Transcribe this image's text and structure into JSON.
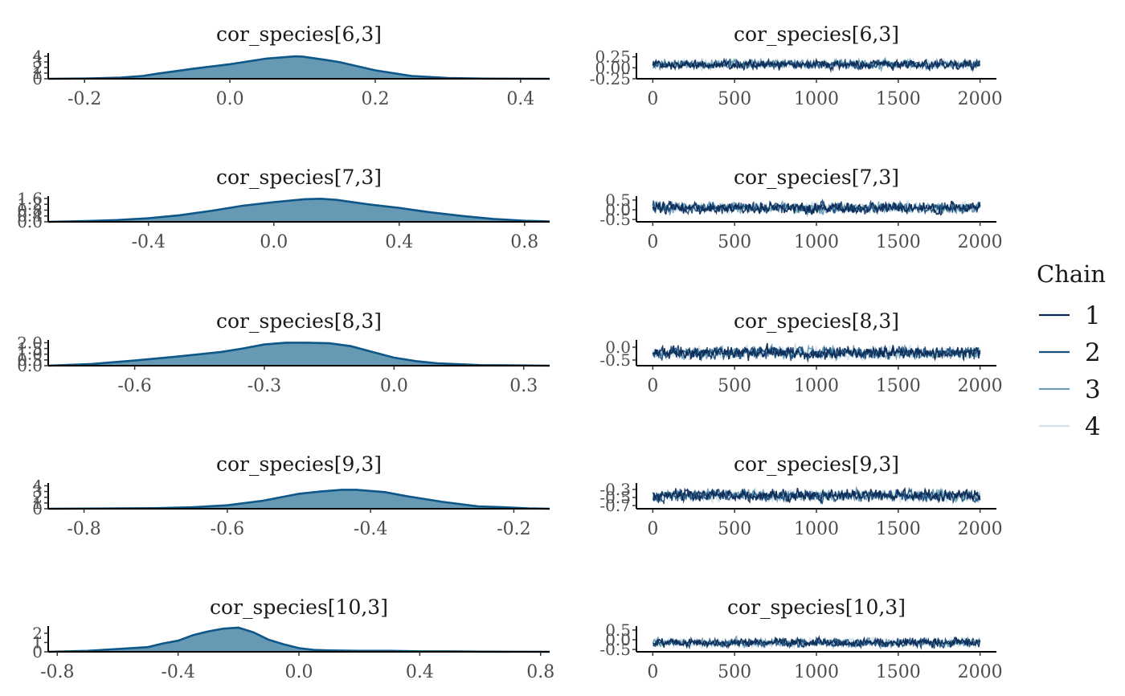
{
  "legend": {
    "title": "Chain",
    "position": "right",
    "items": [
      {
        "label": "1",
        "color": "#0b2a55"
      },
      {
        "label": "2",
        "color": "#1d4f7d"
      },
      {
        "label": "3",
        "color": "#6e9db5"
      },
      {
        "label": "4",
        "color": "#d0e0ea"
      }
    ]
  },
  "colors": {
    "density_fill": "#6699b3",
    "density_line": "#0e5789"
  },
  "chart_data": [
    {
      "type": "area",
      "title": "cor_species[6,3]",
      "xlim": [
        -0.25,
        0.44
      ],
      "xticks": [
        -0.2,
        0.0,
        0.2,
        0.4
      ],
      "xtick_labels": [
        "-0.2",
        "0.0",
        "0.2",
        "0.4"
      ],
      "ylim": [
        0,
        4.3
      ],
      "yticks": [
        0,
        1,
        2,
        3,
        4
      ],
      "ytick_labels": [
        "0",
        "1",
        "2",
        "3",
        "4"
      ],
      "x": [
        -0.25,
        -0.2,
        -0.15,
        -0.12,
        -0.1,
        -0.05,
        0.0,
        0.02,
        0.05,
        0.09,
        0.1,
        0.13,
        0.15,
        0.2,
        0.25,
        0.3,
        0.35,
        0.44
      ],
      "y": [
        0.0,
        0.05,
        0.2,
        0.5,
        0.9,
        1.8,
        2.6,
        3.0,
        3.6,
        4.0,
        3.95,
        3.4,
        3.0,
        1.5,
        0.5,
        0.15,
        0.03,
        0.0
      ]
    },
    {
      "type": "line",
      "title": "cor_species[6,3]",
      "xlim": [
        -100,
        2100
      ],
      "xticks": [
        0,
        500,
        1000,
        1500,
        2000
      ],
      "xtick_labels": [
        "0",
        "500",
        "1000",
        "1500",
        "2000"
      ],
      "ylim": [
        -0.25,
        0.3
      ],
      "yticks": [
        -0.25,
        0.0,
        0.25
      ],
      "ytick_labels": [
        "-0.25",
        "0.00",
        "0.25"
      ],
      "trace": {
        "iterations": 2000,
        "center": 0.08,
        "sd": 0.07,
        "clip": [
          -0.22,
          0.28
        ]
      },
      "series": [
        {
          "name": "1",
          "color": "#0b2a55"
        },
        {
          "name": "2",
          "color": "#1d4f7d"
        },
        {
          "name": "3",
          "color": "#6e9db5"
        },
        {
          "name": "4",
          "color": "#d0e0ea"
        }
      ]
    },
    {
      "type": "area",
      "title": "cor_species[7,3]",
      "xlim": [
        -0.72,
        0.88
      ],
      "xticks": [
        -0.4,
        0.0,
        0.4,
        0.8
      ],
      "xtick_labels": [
        "-0.4",
        "0.0",
        "0.4",
        "0.8"
      ],
      "ylim": [
        0,
        1.65
      ],
      "yticks": [
        0.0,
        0.4,
        0.8,
        1.2,
        1.6
      ],
      "ytick_labels": [
        "0.0",
        "0.4",
        "0.8",
        "1.2",
        "1.6"
      ],
      "x": [
        -0.72,
        -0.6,
        -0.5,
        -0.4,
        -0.3,
        -0.2,
        -0.1,
        0.0,
        0.1,
        0.15,
        0.2,
        0.3,
        0.4,
        0.5,
        0.6,
        0.7,
        0.8,
        0.88
      ],
      "y": [
        0.0,
        0.05,
        0.12,
        0.25,
        0.45,
        0.75,
        1.1,
        1.35,
        1.55,
        1.58,
        1.5,
        1.2,
        0.95,
        0.65,
        0.4,
        0.2,
        0.07,
        0.02
      ]
    },
    {
      "type": "line",
      "title": "cor_species[7,3]",
      "xlim": [
        -100,
        2100
      ],
      "xticks": [
        0,
        500,
        1000,
        1500,
        2000
      ],
      "xtick_labels": [
        "0",
        "500",
        "1000",
        "1500",
        "2000"
      ],
      "ylim": [
        -0.62,
        0.62
      ],
      "yticks": [
        -0.5,
        0.0,
        0.5
      ],
      "ytick_labels": [
        "-0.5",
        "0.0",
        "0.5"
      ],
      "trace": {
        "iterations": 2000,
        "center": 0.1,
        "sd": 0.2,
        "clip": [
          -0.5,
          0.55
        ]
      },
      "series": [
        {
          "name": "1",
          "color": "#0b2a55"
        },
        {
          "name": "2",
          "color": "#1d4f7d"
        },
        {
          "name": "3",
          "color": "#6e9db5"
        },
        {
          "name": "4",
          "color": "#d0e0ea"
        }
      ]
    },
    {
      "type": "area",
      "title": "cor_species[8,3]",
      "xlim": [
        -0.8,
        0.36
      ],
      "xticks": [
        -0.6,
        -0.3,
        0.0,
        0.3
      ],
      "xtick_labels": [
        "-0.6",
        "-0.3",
        "0.0",
        "0.3"
      ],
      "ylim": [
        0,
        2.1
      ],
      "yticks": [
        0.0,
        0.5,
        1.0,
        1.5,
        2.0
      ],
      "ytick_labels": [
        "0.0",
        "0.5",
        "1.0",
        "1.5",
        "2.0"
      ],
      "x": [
        -0.8,
        -0.7,
        -0.6,
        -0.5,
        -0.4,
        -0.35,
        -0.3,
        -0.25,
        -0.2,
        -0.15,
        -0.1,
        -0.05,
        0.0,
        0.05,
        0.1,
        0.2,
        0.36
      ],
      "y": [
        0.0,
        0.15,
        0.45,
        0.8,
        1.2,
        1.5,
        1.85,
        2.0,
        2.0,
        1.95,
        1.7,
        1.2,
        0.7,
        0.4,
        0.2,
        0.05,
        0.0
      ]
    },
    {
      "type": "line",
      "title": "cor_species[8,3]",
      "xlim": [
        -100,
        2100
      ],
      "xticks": [
        0,
        500,
        1000,
        1500,
        2000
      ],
      "xtick_labels": [
        "0",
        "500",
        "1000",
        "1500",
        "2000"
      ],
      "ylim": [
        -0.72,
        0.22
      ],
      "yticks": [
        -0.5,
        0.0
      ],
      "ytick_labels": [
        "-0.5",
        "0.0"
      ],
      "trace": {
        "iterations": 2000,
        "center": -0.22,
        "sd": 0.17,
        "clip": [
          -0.7,
          0.2
        ]
      },
      "series": [
        {
          "name": "1",
          "color": "#0b2a55"
        },
        {
          "name": "2",
          "color": "#1d4f7d"
        },
        {
          "name": "3",
          "color": "#6e9db5"
        },
        {
          "name": "4",
          "color": "#d0e0ea"
        }
      ]
    },
    {
      "type": "area",
      "title": "cor_species[9,3]",
      "xlim": [
        -0.85,
        -0.15
      ],
      "xticks": [
        -0.8,
        -0.6,
        -0.4,
        -0.2
      ],
      "xtick_labels": [
        "-0.8",
        "-0.6",
        "-0.4",
        "-0.2"
      ],
      "ylim": [
        0,
        4.2
      ],
      "yticks": [
        0,
        1,
        2,
        3,
        4
      ],
      "ytick_labels": [
        "0",
        "1",
        "2",
        "3",
        "4"
      ],
      "x": [
        -0.85,
        -0.75,
        -0.7,
        -0.65,
        -0.6,
        -0.55,
        -0.5,
        -0.47,
        -0.44,
        -0.42,
        -0.38,
        -0.35,
        -0.3,
        -0.25,
        -0.22,
        -0.18,
        -0.15
      ],
      "y": [
        0.0,
        0.05,
        0.1,
        0.25,
        0.6,
        1.4,
        2.6,
        3.0,
        3.3,
        3.3,
        2.9,
        2.2,
        1.2,
        0.4,
        0.3,
        0.05,
        0.0
      ]
    },
    {
      "type": "line",
      "title": "cor_species[9,3]",
      "xlim": [
        -100,
        2100
      ],
      "xticks": [
        0,
        500,
        1000,
        1500,
        2000
      ],
      "xtick_labels": [
        "0",
        "500",
        "1000",
        "1500",
        "2000"
      ],
      "ylim": [
        -0.78,
        -0.18
      ],
      "yticks": [
        -0.7,
        -0.5,
        -0.3
      ],
      "ytick_labels": [
        "-0.7",
        "-0.5",
        "-0.3"
      ],
      "trace": {
        "iterations": 2000,
        "center": -0.45,
        "sd": 0.1,
        "clip": [
          -0.75,
          -0.2
        ]
      },
      "series": [
        {
          "name": "1",
          "color": "#0b2a55"
        },
        {
          "name": "2",
          "color": "#1d4f7d"
        },
        {
          "name": "3",
          "color": "#6e9db5"
        },
        {
          "name": "4",
          "color": "#d0e0ea"
        }
      ]
    },
    {
      "type": "area",
      "title": "cor_species[10,3]",
      "xlim": [
        -0.83,
        0.83
      ],
      "xticks": [
        -0.8,
        -0.4,
        0.0,
        0.4,
        0.8
      ],
      "xtick_labels": [
        "-0.8",
        "-0.4",
        "0.0",
        "0.4",
        "0.8"
      ],
      "ylim": [
        0,
        2.6
      ],
      "yticks": [
        0,
        1,
        2
      ],
      "ytick_labels": [
        "0",
        "1",
        "2"
      ],
      "x": [
        -0.83,
        -0.7,
        -0.6,
        -0.5,
        -0.45,
        -0.4,
        -0.35,
        -0.3,
        -0.25,
        -0.2,
        -0.15,
        -0.1,
        -0.05,
        0.0,
        0.05,
        0.1,
        0.2,
        0.3,
        0.4,
        0.5,
        0.6,
        0.83
      ],
      "y": [
        0.0,
        0.1,
        0.3,
        0.5,
        0.9,
        1.2,
        1.8,
        2.2,
        2.5,
        2.6,
        2.1,
        1.3,
        0.8,
        0.4,
        0.2,
        0.15,
        0.1,
        0.1,
        0.05,
        0.05,
        0.02,
        0.0
      ]
    },
    {
      "type": "line",
      "title": "cor_species[10,3]",
      "xlim": [
        -100,
        2100
      ],
      "xticks": [
        0,
        500,
        1000,
        1500,
        2000
      ],
      "xtick_labels": [
        "0",
        "500",
        "1000",
        "1500",
        "2000"
      ],
      "ylim": [
        -0.62,
        0.62
      ],
      "yticks": [
        -0.5,
        0.0,
        0.5
      ],
      "ytick_labels": [
        "-0.5",
        "0.0",
        "0.5"
      ],
      "trace": {
        "iterations": 2000,
        "center": -0.15,
        "sd": 0.15,
        "clip": [
          -0.55,
          0.55
        ]
      },
      "series": [
        {
          "name": "1",
          "color": "#0b2a55"
        },
        {
          "name": "2",
          "color": "#1d4f7d"
        },
        {
          "name": "3",
          "color": "#6e9db5"
        },
        {
          "name": "4",
          "color": "#d0e0ea"
        }
      ]
    }
  ]
}
